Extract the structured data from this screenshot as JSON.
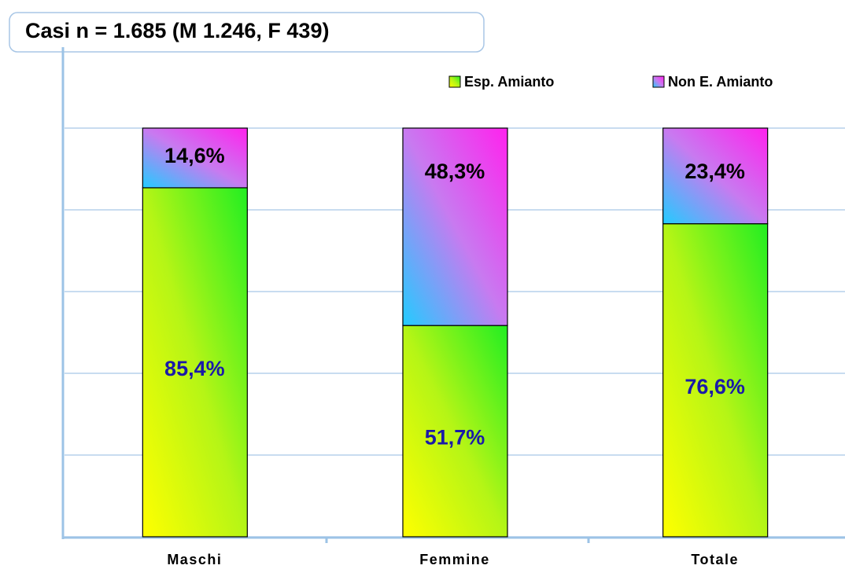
{
  "chart_data": {
    "type": "stacked-bar",
    "title": "Casi n = 1.685 (M 1.246, F 439)",
    "categories": [
      "Maschi",
      "Femmine",
      "Totale"
    ],
    "series": [
      {
        "name": "Esp. Amianto",
        "color": "#b5f516",
        "label_color": "#1a1aa8",
        "values": [
          85.4,
          51.7,
          76.6
        ],
        "value_labels": [
          "85,4%",
          "51,7%",
          "76,6%"
        ]
      },
      {
        "name": "Non E. Amianto",
        "color": "#c87af0",
        "label_color": "#000000",
        "values": [
          14.6,
          48.3,
          23.4
        ],
        "value_labels": [
          "14,6%",
          "48,3%",
          "23,4%"
        ]
      }
    ],
    "ylim": [
      0,
      100
    ],
    "yticks": [
      0,
      20,
      40,
      60,
      80,
      100
    ],
    "grid": true,
    "legend": "top-right"
  }
}
